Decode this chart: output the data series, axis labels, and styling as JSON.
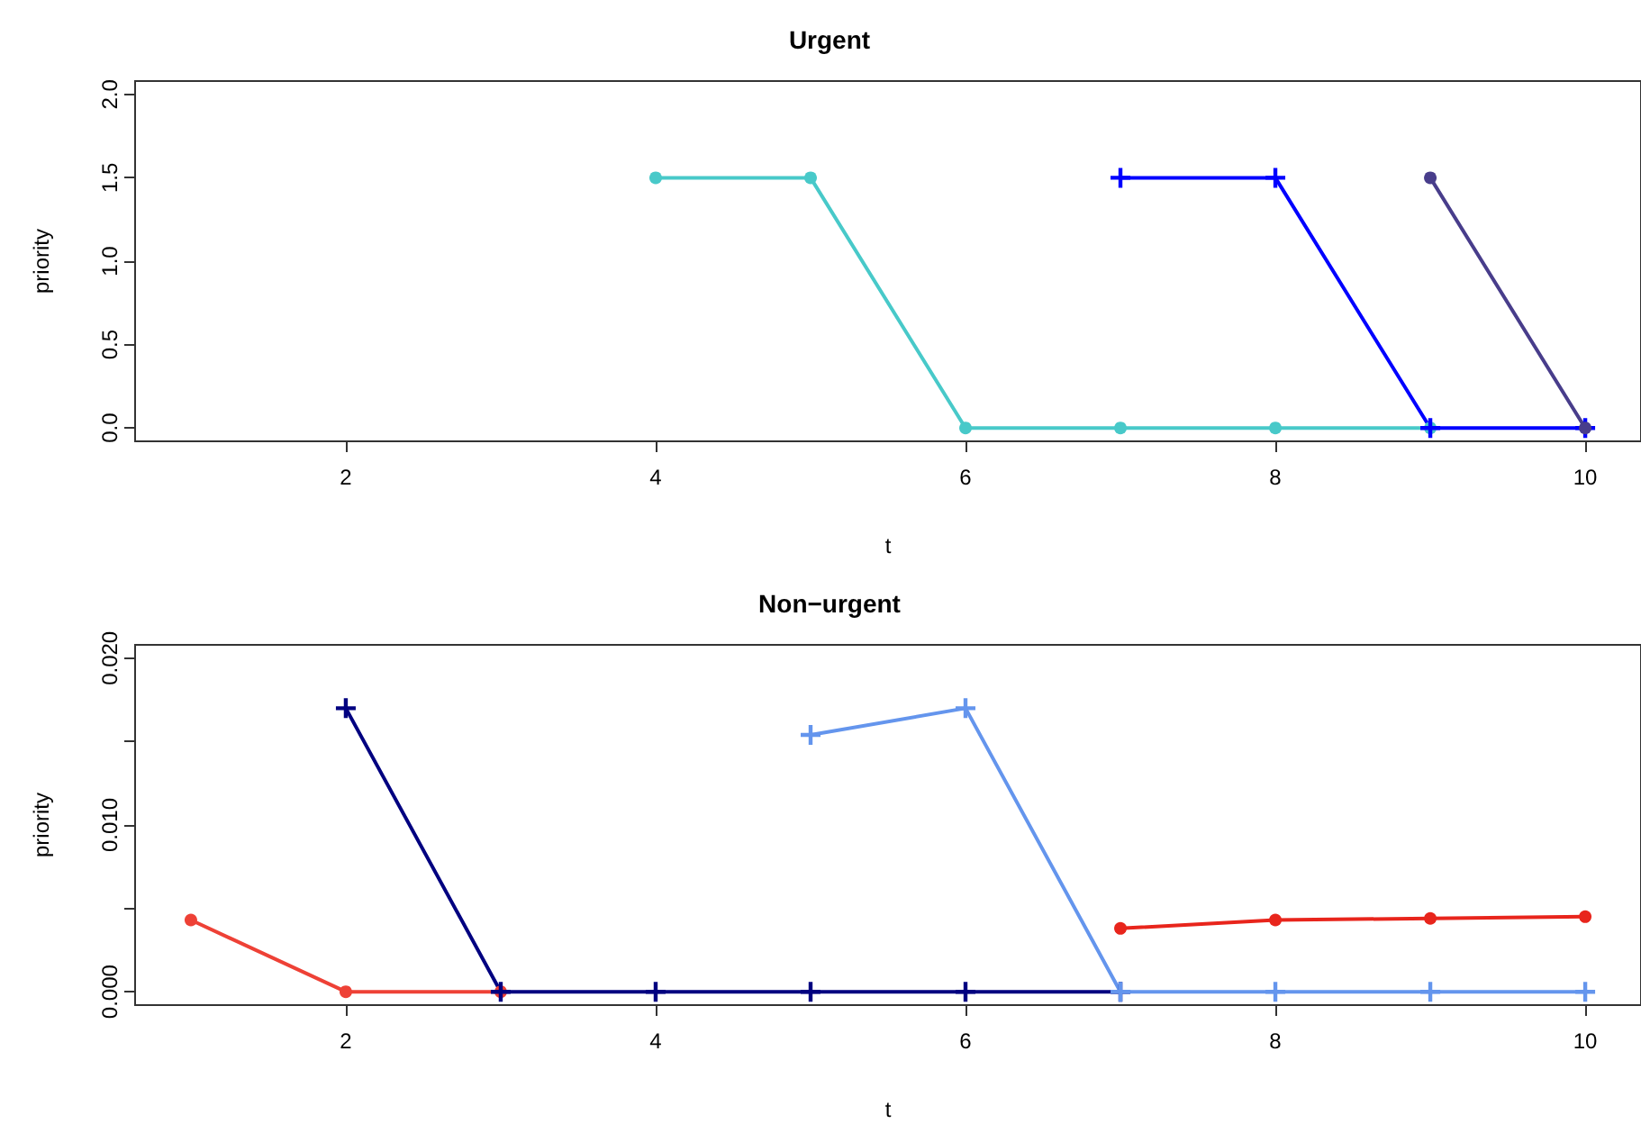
{
  "chart_data": [
    {
      "type": "line",
      "title": "Urgent",
      "xlabel": "t",
      "ylabel": "priority",
      "xlim": [
        0.64,
        10.36
      ],
      "xticks": [
        2,
        4,
        6,
        8,
        10
      ],
      "ylim": [
        -0.08,
        2.08
      ],
      "yticks": [
        {
          "value": 0,
          "label": "0.0"
        },
        {
          "value": 0.5,
          "label": "0.5"
        },
        {
          "value": 1,
          "label": "1.0"
        },
        {
          "value": 1.5,
          "label": "1.5"
        },
        {
          "value": 2,
          "label": "2.0"
        }
      ],
      "series": [
        {
          "color": "#48c9c9",
          "marker": "circle",
          "x": [
            4,
            5,
            6,
            7,
            8,
            9
          ],
          "values": [
            1.5,
            1.5,
            0,
            0,
            0,
            0
          ]
        },
        {
          "color": "#0000ff",
          "marker": "cross",
          "x": [
            7,
            8,
            9,
            10
          ],
          "values": [
            1.5,
            1.5,
            0,
            0
          ]
        },
        {
          "color": "#483d8b",
          "marker": "circle",
          "x": [
            9,
            10
          ],
          "values": [
            1.5,
            0
          ]
        }
      ]
    },
    {
      "type": "line",
      "title": "Non−urgent",
      "xlabel": "t",
      "ylabel": "priority",
      "xlim": [
        0.64,
        10.36
      ],
      "xticks": [
        2,
        4,
        6,
        8,
        10
      ],
      "ylim": [
        -0.0008,
        0.0208
      ],
      "yticks": [
        {
          "value": 0,
          "label": "0.000"
        },
        {
          "value": 0.005,
          "label": null
        },
        {
          "value": 0.01,
          "label": "0.010"
        },
        {
          "value": 0.015,
          "label": null
        },
        {
          "value": 0.02,
          "label": "0.020"
        }
      ],
      "series": [
        {
          "color": "#ee4136",
          "marker": "circle",
          "x": [
            1,
            2,
            3
          ],
          "values": [
            0.0043,
            0,
            0
          ]
        },
        {
          "color": "#000080",
          "marker": "cross",
          "x": [
            2,
            3,
            4,
            5,
            6,
            7
          ],
          "values": [
            0.017,
            0,
            0,
            0,
            0,
            0
          ]
        },
        {
          "color": "#6495ed",
          "marker": "cross",
          "x": [
            5,
            6,
            7,
            8,
            9,
            10
          ],
          "values": [
            0.0154,
            0.017,
            0,
            0,
            0,
            0
          ]
        },
        {
          "color": "#e8251c",
          "marker": "circle",
          "x": [
            7,
            8,
            9,
            10
          ],
          "values": [
            0.0038,
            0.0043,
            0.0044,
            0.0045
          ]
        }
      ]
    }
  ]
}
